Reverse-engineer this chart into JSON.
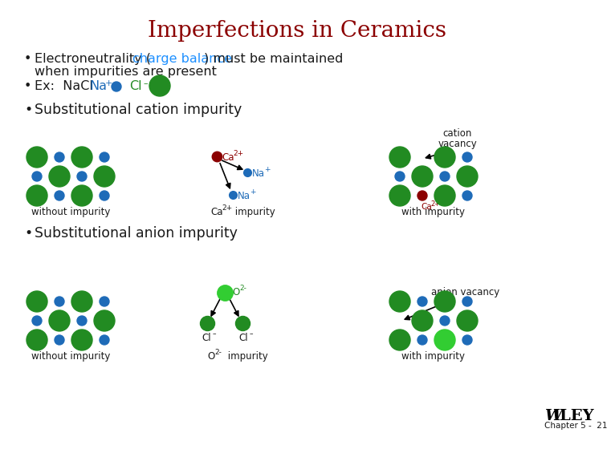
{
  "title": "Imperfections in Ceramics",
  "title_color": "#8B0000",
  "title_fontsize": 20,
  "bg_color": "#FFFFFF",
  "green_large": "#228B22",
  "green_bright": "#32CD32",
  "blue_small": "#1E6BB8",
  "dark_red": "#8B0000",
  "text_color": "#1a1a1a",
  "blue_text": "#1E90FF",
  "chapter": "Chapter 5 -  21"
}
